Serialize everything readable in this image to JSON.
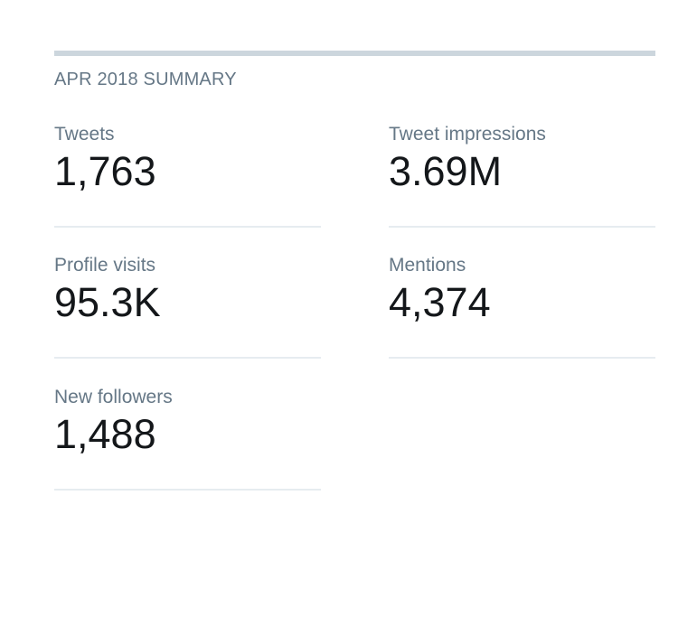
{
  "summary": {
    "title": "APR 2018 SUMMARY"
  },
  "stats": [
    {
      "label": "Tweets",
      "value": "1,763"
    },
    {
      "label": "Tweet impressions",
      "value": "3.69M"
    },
    {
      "label": "Profile visits",
      "value": "95.3K"
    },
    {
      "label": "Mentions",
      "value": "4,374"
    },
    {
      "label": "New followers",
      "value": "1,488"
    }
  ],
  "colors": {
    "label": "#657786",
    "value": "#14171a",
    "rule": "#ccd6dd",
    "divider": "#e6ecf0"
  }
}
